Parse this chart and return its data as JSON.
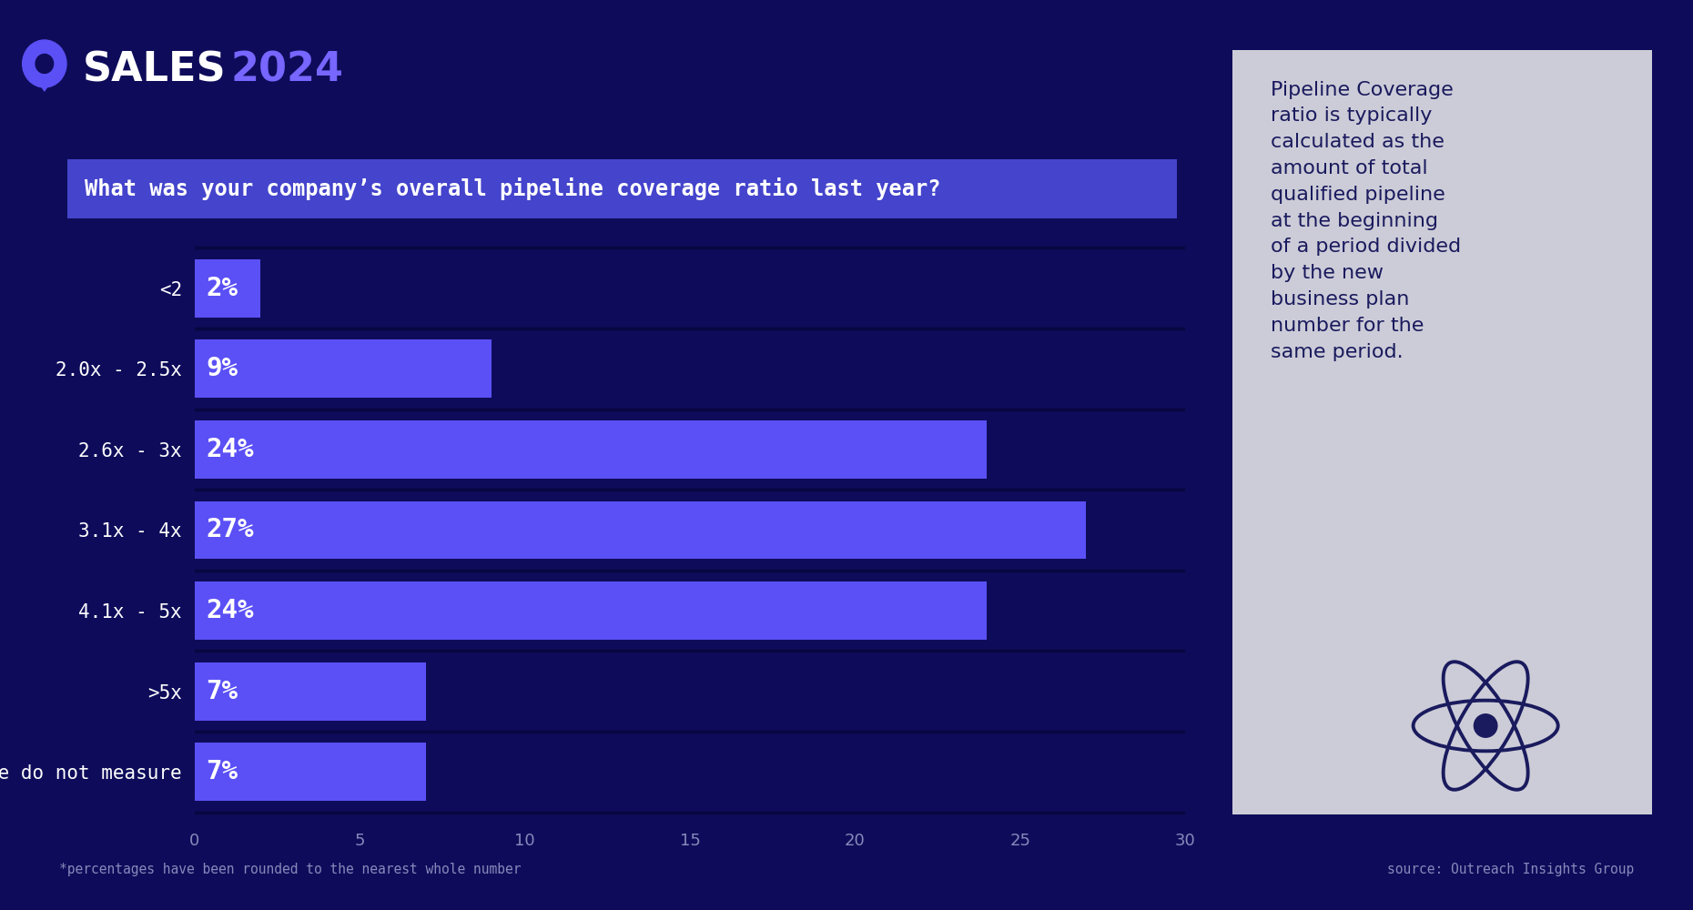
{
  "categories": [
    "<2",
    "2.0x - 2.5x",
    "2.6x - 3x",
    "3.1x - 4x",
    "4.1x - 5x",
    ">5x",
    "We do not measure"
  ],
  "values": [
    2,
    9,
    24,
    27,
    24,
    7,
    7
  ],
  "bar_color": "#5b50f5",
  "background_color": "#0e0c5a",
  "question": "What was your company’s overall pipeline coverage ratio last year?",
  "question_bg": "#4444cc",
  "xlim": [
    0,
    30
  ],
  "xticks": [
    0,
    5,
    10,
    15,
    20,
    25,
    30
  ],
  "footnote": "*percentages have been rounded to the nearest whole number",
  "source": "source: Outreach Insights Group",
  "sidebar_text": "Pipeline Coverage\nratio is typically\ncalculated as the\namount of total\nqualified pipeline\nat the beginning\nof a period divided\nby the new\nbusiness plan\nnumber for the\nsame period.",
  "sidebar_bg": "#ccccd8",
  "tick_color": "#8888bb",
  "separator_color": "#080640"
}
